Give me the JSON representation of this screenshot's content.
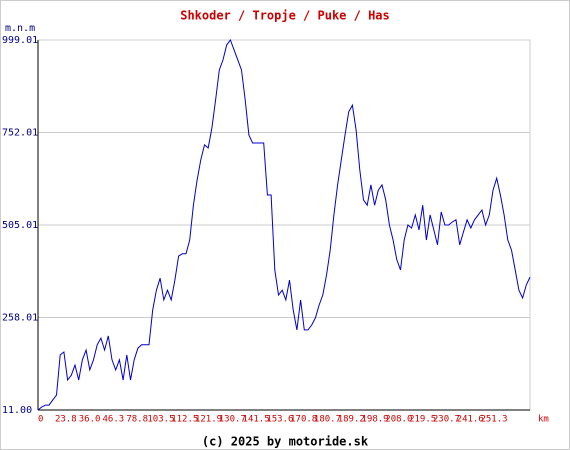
{
  "chart_data": {
    "type": "line",
    "title": "Shkoder / Tropje / Puke / Has",
    "y_label": "m.n.m",
    "x_label": "km",
    "footer": "(c) 2025 by motoride.sk",
    "x_tick_labels": [
      "0",
      "23.8",
      "36.0",
      "46.3",
      "78.8",
      "103.5",
      "112.5",
      "121.9",
      "130.7",
      "141.5",
      "153.6",
      "170.8",
      "180.7",
      "189.2",
      "198.9",
      "208.0",
      "219.5",
      "230.7",
      "241.6",
      "251.3"
    ],
    "ylim": [
      11,
      999.01
    ],
    "yticks": [
      {
        "value": 11,
        "label": "11.00"
      },
      258.01,
      505.01,
      752.01,
      999.01
    ],
    "grid": true,
    "color": "#0000cc",
    "values": [
      11,
      19,
      24,
      24,
      38,
      51,
      158,
      166,
      91,
      104,
      131,
      91,
      145,
      171,
      118,
      145,
      185,
      203,
      171,
      209,
      145,
      118,
      145,
      91,
      158,
      91,
      145,
      176,
      185,
      185,
      185,
      278,
      331,
      363,
      305,
      331,
      305,
      358,
      422,
      428,
      428,
      465,
      558,
      625,
      679,
      719,
      711,
      764,
      839,
      919,
      946,
      986,
      999,
      972,
      946,
      919,
      839,
      745,
      724,
      724,
      724,
      724,
      585,
      585,
      385,
      318,
      331,
      305,
      358,
      278,
      225,
      305,
      225,
      225,
      238,
      257,
      291,
      318,
      371,
      438,
      532,
      612,
      679,
      745,
      807,
      825,
      759,
      652,
      572,
      558,
      612,
      558,
      598,
      612,
      572,
      505,
      465,
      412,
      385,
      465,
      505,
      497,
      532,
      492,
      558,
      465,
      532,
      492,
      452,
      540,
      505,
      505,
      513,
      519,
      452,
      486,
      519,
      497,
      519,
      532,
      545,
      505,
      532,
      598,
      630,
      585,
      532,
      465,
      438,
      385,
      331,
      310,
      345,
      366
    ]
  }
}
